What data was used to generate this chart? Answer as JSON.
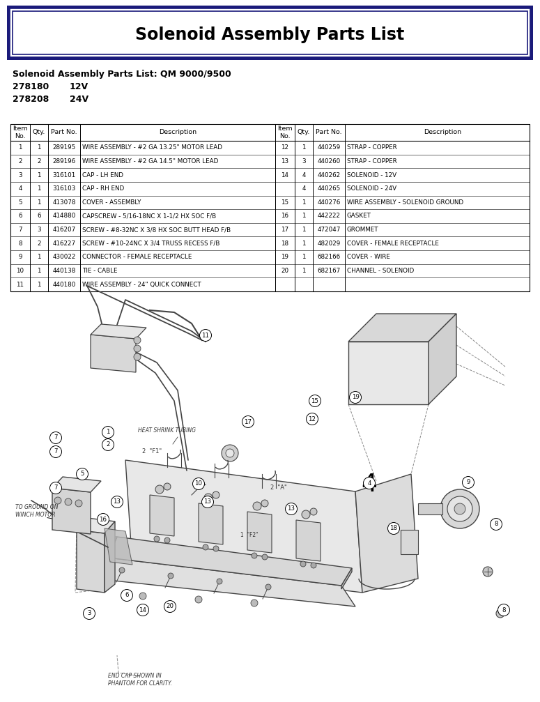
{
  "title": "Solenoid Assembly Parts List",
  "subtitle": "Solenoid Assembly Parts List: QM 9000/9500",
  "part_numbers": [
    {
      "code": "278180",
      "desc": "12V"
    },
    {
      "code": "278208",
      "desc": "24V"
    }
  ],
  "left_rows": [
    [
      "1",
      "1",
      "289195",
      "WIRE ASSEMBLY - #2 GA 13.25\" MOTOR LEAD"
    ],
    [
      "2",
      "2",
      "289196",
      "WIRE ASSEMBLY - #2 GA 14.5\" MOTOR LEAD"
    ],
    [
      "3",
      "1",
      "316101",
      "CAP - LH END"
    ],
    [
      "4",
      "1",
      "316103",
      "CAP - RH END"
    ],
    [
      "5",
      "1",
      "413078",
      "COVER - ASSEMBLY"
    ],
    [
      "6",
      "6",
      "414880",
      "CAPSCREW - 5/16-18NC X 1-1/2 HX SOC F/B"
    ],
    [
      "7",
      "3",
      "416207",
      "SCREW - #8-32NC X 3/8 HX SOC BUTT HEAD F/B"
    ],
    [
      "8",
      "2",
      "416227",
      "SCREW - #10-24NC X 3/4 TRUSS RECESS F/B"
    ],
    [
      "9",
      "1",
      "430022",
      "CONNECTOR - FEMALE RECEPTACLE"
    ],
    [
      "10",
      "1",
      "440138",
      "TIE - CABLE"
    ],
    [
      "11",
      "1",
      "440180",
      "WIRE ASSEMBLY - 24\" QUICK CONNECT"
    ]
  ],
  "right_rows": [
    [
      "12",
      "1",
      "440259",
      "STRAP - COPPER"
    ],
    [
      "13",
      "3",
      "440260",
      "STRAP - COPPER"
    ],
    [
      "14",
      "4",
      "440262",
      "SOLENOID - 12V"
    ],
    [
      "",
      "4",
      "440265",
      "SOLENOID - 24V"
    ],
    [
      "15",
      "1",
      "440276",
      "WIRE ASSEMBLY - SOLENOID GROUND"
    ],
    [
      "16",
      "1",
      "442222",
      "GASKET"
    ],
    [
      "17",
      "1",
      "472047",
      "GROMMET"
    ],
    [
      "18",
      "1",
      "482029",
      "COVER - FEMALE RECEPTACLE"
    ],
    [
      "19",
      "1",
      "682166",
      "COVER - WIRE"
    ],
    [
      "20",
      "1",
      "682167",
      "CHANNEL - SOLENOID"
    ]
  ],
  "bg": "#ffffff",
  "border_color": "#1a1a7a",
  "black": "#000000",
  "gray_light": "#e8e8e8",
  "gray_med": "#cccccc",
  "gray_dark": "#888888",
  "diagram_line": "#444444"
}
